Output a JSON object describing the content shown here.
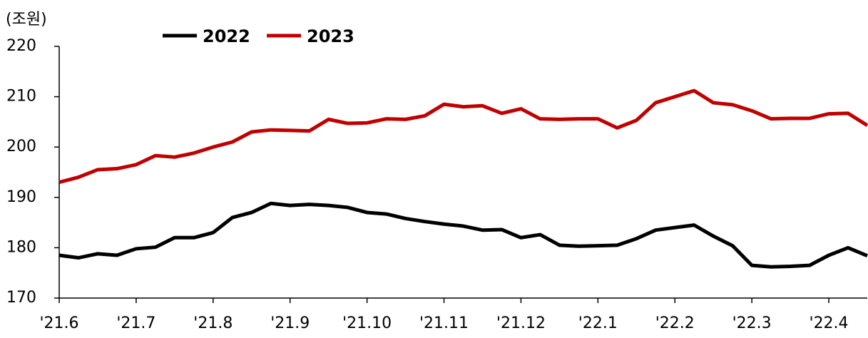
{
  "chart_data": {
    "type": "line",
    "y_label": "(조원)",
    "categories": [
      "'21.6",
      null,
      null,
      null,
      "'21.7",
      null,
      null,
      null,
      "'21.8",
      null,
      null,
      null,
      "'21.9",
      null,
      null,
      null,
      "'21.10",
      null,
      null,
      null,
      "'21.11",
      null,
      null,
      null,
      "'21.12",
      null,
      null,
      null,
      "'22.1",
      null,
      null,
      null,
      "'22.2",
      null,
      null,
      null,
      "'22.3",
      null,
      null,
      null,
      "'22.4",
      null,
      null
    ],
    "series": [
      {
        "name": "2022",
        "color": "#000000",
        "values": [
          178.5,
          178,
          178.8,
          178.5,
          179.8,
          180.1,
          182,
          182,
          183,
          186,
          187,
          188.8,
          188.4,
          188.6,
          188.4,
          188,
          187,
          186.7,
          185.8,
          185.2,
          184.7,
          184.3,
          183.5,
          183.6,
          182,
          182.6,
          180.5,
          180.3,
          180.4,
          180.5,
          181.8,
          183.5,
          184,
          184.5,
          182.3,
          180.4,
          176.5,
          176.2,
          176.3,
          176.5,
          178.5,
          180,
          178.4
        ]
      },
      {
        "name": "2023",
        "color": "#c00000",
        "values": [
          193,
          194,
          195.5,
          195.7,
          196.5,
          198.3,
          198,
          198.8,
          200,
          201,
          203,
          203.4,
          203.3,
          203.2,
          205.5,
          204.7,
          204.8,
          205.6,
          205.5,
          206.2,
          208.5,
          208,
          208.2,
          206.7,
          207.6,
          205.6,
          205.5,
          205.6,
          205.6,
          203.8,
          205.3,
          208.8,
          210,
          211.2,
          208.8,
          208.4,
          207.2,
          205.6,
          205.7,
          205.7,
          206.6,
          206.7,
          204.3
        ]
      }
    ],
    "ylim": [
      170,
      220
    ],
    "yticks": [
      170,
      180,
      190,
      200,
      210,
      220
    ],
    "legend": "top"
  }
}
